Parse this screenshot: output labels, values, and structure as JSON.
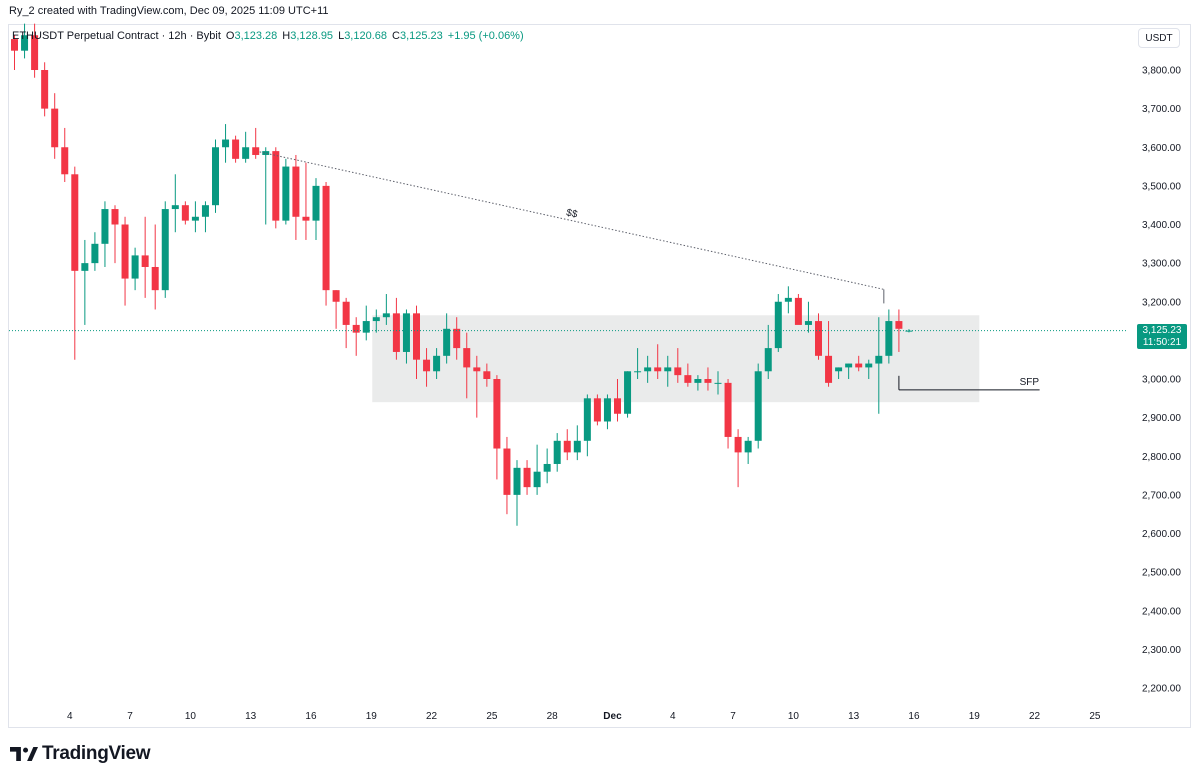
{
  "header": {
    "caption": "Ry_2 created with TradingView.com, Dec 09, 2025 11:09 UTC+11"
  },
  "legend": {
    "symbol": "ETHUSDT Perpetual Contract · 12h · Bybit",
    "open_label": "O",
    "open": "3,123.28",
    "high_label": "H",
    "high": "3,128.95",
    "low_label": "L",
    "low": "3,120.68",
    "close_label": "C",
    "close": "3,125.23",
    "change": "+1.95 (+0.06%)"
  },
  "currency": "USDT",
  "price_tag": {
    "price": "3,125.23",
    "countdown": "11:50:21"
  },
  "brand": {
    "name": "TradingView",
    "logo_icon": "tradingview-logo-icon"
  },
  "colors": {
    "up": "#089981",
    "down": "#f23645",
    "zone": "#e6e7e8",
    "current_line": "#089981",
    "frame": "#e0e3eb"
  },
  "chart_data": {
    "type": "candlestick",
    "interval": "12h",
    "ylim": [
      2150,
      3900
    ],
    "y_ticks": [
      2200,
      2300,
      2400,
      2500,
      2600,
      2700,
      2800,
      2900,
      3000,
      3100,
      3200,
      3300,
      3400,
      3500,
      3600,
      3700,
      3800
    ],
    "y_tick_labels": [
      "2,200.00",
      "2,300.00",
      "2,400.00",
      "2,500.00",
      "2,600.00",
      "2,700.00",
      "2,800.00",
      "2,900.00",
      "3,000.00",
      "3,100.00",
      "3,200.00",
      "3,300.00",
      "3,400.00",
      "3,500.00",
      "3,600.00",
      "3,700.00",
      "3,800.00"
    ],
    "x_labels": [
      {
        "label": "4",
        "index": 5.5
      },
      {
        "label": "7",
        "index": 11.5
      },
      {
        "label": "10",
        "index": 17.5
      },
      {
        "label": "13",
        "index": 23.5
      },
      {
        "label": "16",
        "index": 29.5
      },
      {
        "label": "19",
        "index": 35.5
      },
      {
        "label": "22",
        "index": 41.5
      },
      {
        "label": "25",
        "index": 47.5
      },
      {
        "label": "28",
        "index": 53.5
      },
      {
        "label": "Dec",
        "index": 59.5,
        "bold": true
      },
      {
        "label": "4",
        "index": 65.5
      },
      {
        "label": "7",
        "index": 71.5
      },
      {
        "label": "10",
        "index": 77.5
      },
      {
        "label": "13",
        "index": 83.5
      },
      {
        "label": "16",
        "index": 89.5
      },
      {
        "label": "19",
        "index": 95.5
      },
      {
        "label": "22",
        "index": 101.5
      },
      {
        "label": "25",
        "index": 107.5
      }
    ],
    "x_range": [
      -0.5,
      110
    ],
    "current_price": 3125.23,
    "candles": [
      [
        3880,
        3890,
        3800,
        3850
      ],
      [
        3850,
        3920,
        3830,
        3890
      ],
      [
        3890,
        3920,
        3780,
        3800
      ],
      [
        3800,
        3820,
        3680,
        3700
      ],
      [
        3700,
        3740,
        3570,
        3600
      ],
      [
        3600,
        3650,
        3510,
        3530
      ],
      [
        3530,
        3550,
        3050,
        3280
      ],
      [
        3280,
        3360,
        3140,
        3300
      ],
      [
        3300,
        3380,
        3280,
        3350
      ],
      [
        3350,
        3460,
        3290,
        3440
      ],
      [
        3440,
        3450,
        3300,
        3400
      ],
      [
        3400,
        3420,
        3190,
        3260
      ],
      [
        3260,
        3340,
        3230,
        3320
      ],
      [
        3320,
        3420,
        3210,
        3290
      ],
      [
        3290,
        3400,
        3180,
        3230
      ],
      [
        3230,
        3460,
        3210,
        3440
      ],
      [
        3440,
        3530,
        3380,
        3450
      ],
      [
        3450,
        3460,
        3400,
        3410
      ],
      [
        3410,
        3460,
        3380,
        3420
      ],
      [
        3420,
        3460,
        3380,
        3450
      ],
      [
        3450,
        3620,
        3430,
        3600
      ],
      [
        3600,
        3660,
        3560,
        3620
      ],
      [
        3620,
        3630,
        3560,
        3570
      ],
      [
        3570,
        3640,
        3560,
        3600
      ],
      [
        3600,
        3650,
        3570,
        3580
      ],
      [
        3580,
        3600,
        3400,
        3590
      ],
      [
        3590,
        3600,
        3390,
        3410
      ],
      [
        3410,
        3570,
        3400,
        3550
      ],
      [
        3550,
        3580,
        3360,
        3420
      ],
      [
        3420,
        3560,
        3360,
        3410
      ],
      [
        3410,
        3520,
        3360,
        3500
      ],
      [
        3500,
        3510,
        3190,
        3230
      ],
      [
        3230,
        3230,
        3130,
        3200
      ],
      [
        3200,
        3210,
        3080,
        3140
      ],
      [
        3140,
        3160,
        3060,
        3120
      ],
      [
        3120,
        3190,
        3100,
        3150
      ],
      [
        3150,
        3180,
        3120,
        3160
      ],
      [
        3160,
        3220,
        3140,
        3170
      ],
      [
        3170,
        3210,
        3050,
        3070
      ],
      [
        3070,
        3180,
        3040,
        3170
      ],
      [
        3170,
        3190,
        3000,
        3050
      ],
      [
        3050,
        3080,
        2980,
        3020
      ],
      [
        3020,
        3080,
        3000,
        3060
      ],
      [
        3060,
        3170,
        3040,
        3130
      ],
      [
        3130,
        3160,
        3050,
        3080
      ],
      [
        3080,
        3120,
        2950,
        3030
      ],
      [
        3030,
        3060,
        2900,
        3020
      ],
      [
        3020,
        3040,
        2980,
        3000
      ],
      [
        3000,
        3010,
        2740,
        2820
      ],
      [
        2820,
        2850,
        2650,
        2700
      ],
      [
        2700,
        2790,
        2620,
        2770
      ],
      [
        2770,
        2790,
        2700,
        2720
      ],
      [
        2720,
        2830,
        2700,
        2760
      ],
      [
        2760,
        2820,
        2730,
        2780
      ],
      [
        2780,
        2860,
        2760,
        2840
      ],
      [
        2840,
        2870,
        2790,
        2810
      ],
      [
        2810,
        2880,
        2790,
        2840
      ],
      [
        2840,
        2960,
        2800,
        2950
      ],
      [
        2950,
        2960,
        2880,
        2890
      ],
      [
        2890,
        2960,
        2870,
        2950
      ],
      [
        2950,
        3000,
        2890,
        2910
      ],
      [
        2910,
        3020,
        2900,
        3020
      ],
      [
        3020,
        3080,
        3000,
        3020
      ],
      [
        3020,
        3060,
        2990,
        3030
      ],
      [
        3030,
        3090,
        3000,
        3020
      ],
      [
        3020,
        3060,
        2980,
        3030
      ],
      [
        3030,
        3080,
        2990,
        3010
      ],
      [
        3010,
        3040,
        2980,
        2990
      ],
      [
        2990,
        3010,
        2970,
        3000
      ],
      [
        3000,
        3030,
        2970,
        2990
      ],
      [
        2990,
        3020,
        2960,
        2990
      ],
      [
        2990,
        3000,
        2820,
        2850
      ],
      [
        2850,
        2870,
        2720,
        2810
      ],
      [
        2810,
        2850,
        2780,
        2840
      ],
      [
        2840,
        3040,
        2820,
        3020
      ],
      [
        3020,
        3140,
        3000,
        3080
      ],
      [
        3080,
        3220,
        3070,
        3200
      ],
      [
        3200,
        3240,
        3170,
        3210
      ],
      [
        3210,
        3220,
        3150,
        3140
      ],
      [
        3140,
        3200,
        3120,
        3150
      ],
      [
        3150,
        3170,
        3050,
        3060
      ],
      [
        3060,
        3150,
        2980,
        2990
      ],
      [
        3020,
        3030,
        3000,
        3030
      ],
      [
        3030,
        3040,
        3000,
        3040
      ],
      [
        3040,
        3060,
        3020,
        3030
      ],
      [
        3030,
        3050,
        3000,
        3040
      ],
      [
        3040,
        3160,
        2910,
        3060
      ],
      [
        3060,
        3180,
        3040,
        3150
      ],
      [
        3150,
        3180,
        3070,
        3130
      ],
      [
        3123.28,
        3128.95,
        3120.68,
        3125.23
      ]
    ],
    "zone": {
      "x_start_index": 35.6,
      "x_end_index": 96,
      "y_low": 2940,
      "y_high": 3165
    },
    "trendline": {
      "x1_index": 24.4,
      "y1": 3588,
      "x2_index": 86.5,
      "y2": 3232,
      "label": "$$"
    },
    "sfp_line": {
      "x1_index": 88,
      "x2_index": 102,
      "y": 2972,
      "label": "SFP"
    }
  }
}
